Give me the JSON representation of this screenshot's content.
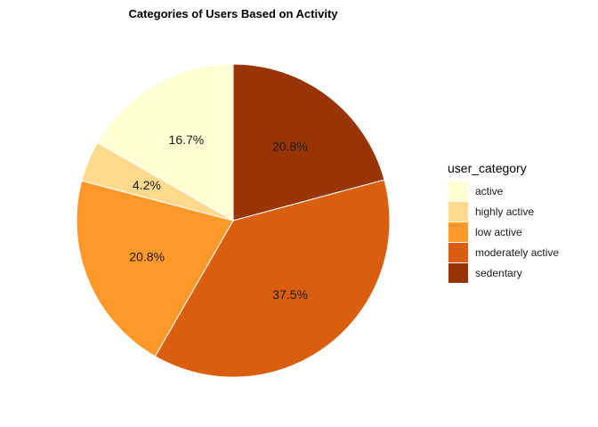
{
  "chart_data": {
    "type": "pie",
    "title": "Categories of Users Based on Activity",
    "legend_title": "user_category",
    "legend_position": "right",
    "categories": [
      "active",
      "highly active",
      "low active",
      "moderately active",
      "sedentary"
    ],
    "values": [
      16.7,
      4.2,
      20.8,
      37.5,
      20.8
    ],
    "labels": [
      "16.7%",
      "4.2%",
      "20.8%",
      "37.5%",
      "20.8%"
    ],
    "colors": [
      "#FFFFD4",
      "#FED98E",
      "#FE9929",
      "#D95F0E",
      "#993404"
    ]
  }
}
